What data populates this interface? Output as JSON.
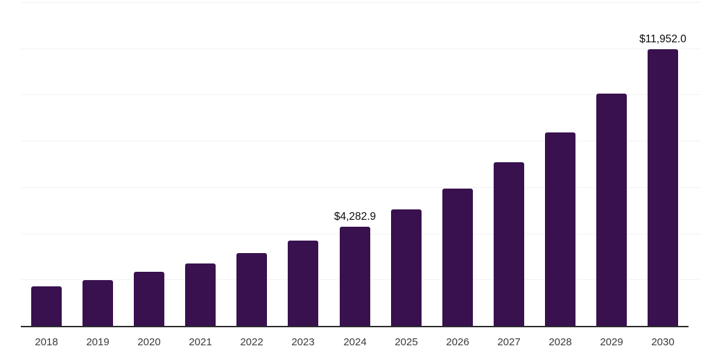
{
  "chart_data": {
    "type": "bar",
    "categories": [
      "2018",
      "2019",
      "2020",
      "2021",
      "2022",
      "2023",
      "2024",
      "2025",
      "2026",
      "2027",
      "2028",
      "2029",
      "2030"
    ],
    "values": [
      1710,
      1980,
      2340,
      2700,
      3150,
      3690,
      4282.9,
      5040,
      5940,
      7080,
      8360,
      10040,
      11952.0
    ],
    "data_labels": [
      "",
      "",
      "",
      "",
      "",
      "",
      "$4,282.9",
      "",
      "",
      "",
      "",
      "",
      "$11,952.0"
    ],
    "ylim": [
      0,
      14000
    ],
    "gridline_step": 2000,
    "grid": "horizontal",
    "legend_position": "none",
    "y_tick_labels_visible": false,
    "colors": {
      "bar": "#38114E",
      "gridline": "#F2F2F4",
      "axis_line": "#2B2B2B",
      "tick_label": "#3A3A3A",
      "data_label": "#0A0A0A",
      "background": "#FFFFFF"
    }
  }
}
